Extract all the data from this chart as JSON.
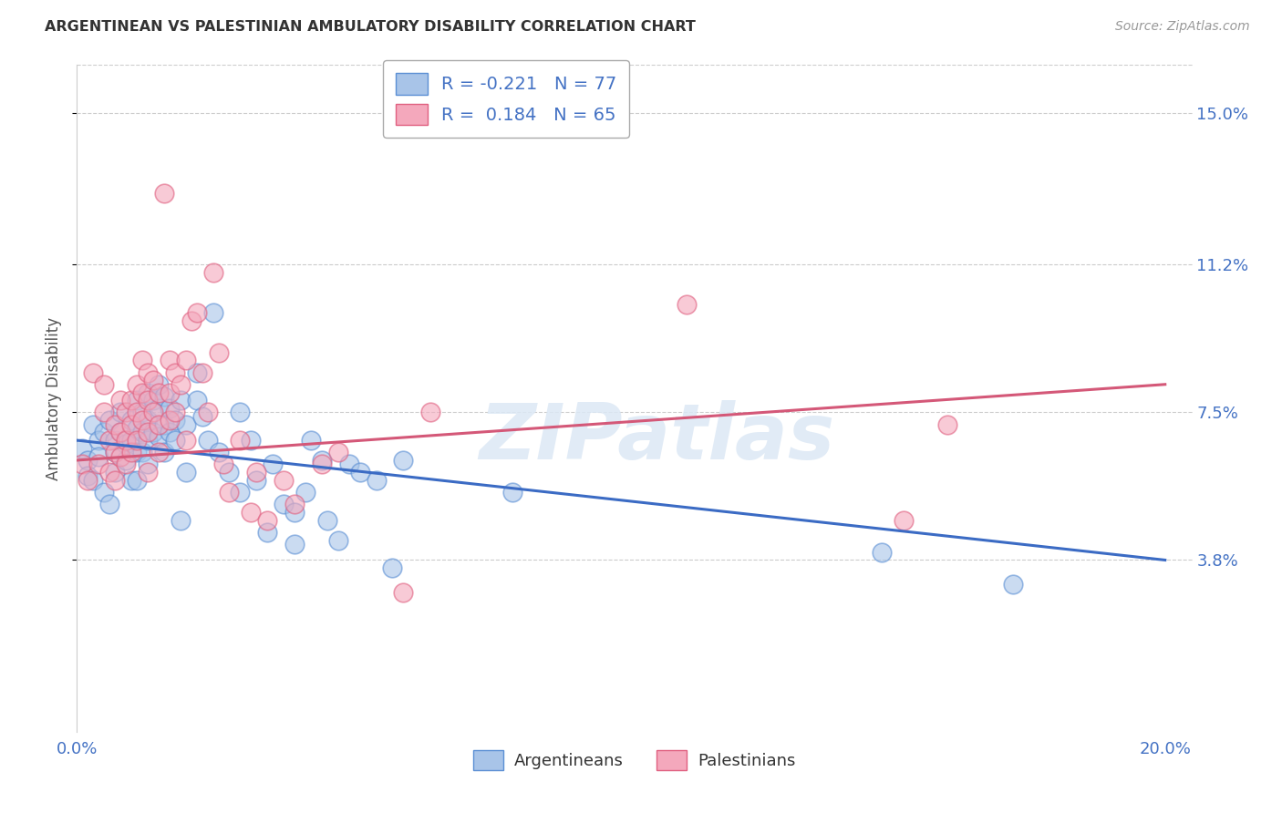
{
  "title": "ARGENTINEAN VS PALESTINIAN AMBULATORY DISABILITY CORRELATION CHART",
  "source": "Source: ZipAtlas.com",
  "ylabel": "Ambulatory Disability",
  "xlabel": "",
  "xlim": [
    0.0,
    0.205
  ],
  "ylim": [
    -0.005,
    0.162
  ],
  "yticks": [
    0.038,
    0.075,
    0.112,
    0.15
  ],
  "ytick_labels": [
    "3.8%",
    "7.5%",
    "11.2%",
    "15.0%"
  ],
  "xticks": [
    0.0,
    0.05,
    0.1,
    0.15,
    0.2
  ],
  "watermark": "ZIPatlas",
  "argentinean_color": "#a8c4e8",
  "palestinian_color": "#f4a8bc",
  "argentinean_edge_color": "#5b8fd4",
  "palestinian_edge_color": "#e06080",
  "argentinean_line_color": "#3b6bc4",
  "palestinian_line_color": "#d45878",
  "R_arg": -0.221,
  "N_arg": 77,
  "R_pal": 0.184,
  "N_pal": 65,
  "background_color": "#ffffff",
  "grid_color": "#cccccc",
  "title_color": "#333333",
  "axis_label_color": "#555555",
  "right_tick_color": "#4472c4",
  "argentinean_points": [
    [
      0.001,
      0.066
    ],
    [
      0.002,
      0.063
    ],
    [
      0.002,
      0.059
    ],
    [
      0.003,
      0.058
    ],
    [
      0.003,
      0.072
    ],
    [
      0.004,
      0.068
    ],
    [
      0.004,
      0.064
    ],
    [
      0.005,
      0.07
    ],
    [
      0.005,
      0.055
    ],
    [
      0.006,
      0.052
    ],
    [
      0.006,
      0.073
    ],
    [
      0.007,
      0.068
    ],
    [
      0.007,
      0.065
    ],
    [
      0.007,
      0.06
    ],
    [
      0.008,
      0.075
    ],
    [
      0.008,
      0.07
    ],
    [
      0.009,
      0.067
    ],
    [
      0.009,
      0.063
    ],
    [
      0.01,
      0.073
    ],
    [
      0.01,
      0.068
    ],
    [
      0.01,
      0.058
    ],
    [
      0.011,
      0.078
    ],
    [
      0.011,
      0.071
    ],
    [
      0.011,
      0.065
    ],
    [
      0.011,
      0.058
    ],
    [
      0.012,
      0.075
    ],
    [
      0.012,
      0.07
    ],
    [
      0.012,
      0.065
    ],
    [
      0.013,
      0.08
    ],
    [
      0.013,
      0.073
    ],
    [
      0.013,
      0.068
    ],
    [
      0.013,
      0.062
    ],
    [
      0.014,
      0.078
    ],
    [
      0.014,
      0.07
    ],
    [
      0.015,
      0.082
    ],
    [
      0.015,
      0.076
    ],
    [
      0.015,
      0.069
    ],
    [
      0.016,
      0.079
    ],
    [
      0.016,
      0.072
    ],
    [
      0.016,
      0.065
    ],
    [
      0.017,
      0.076
    ],
    [
      0.017,
      0.07
    ],
    [
      0.018,
      0.073
    ],
    [
      0.018,
      0.068
    ],
    [
      0.019,
      0.078
    ],
    [
      0.019,
      0.048
    ],
    [
      0.02,
      0.072
    ],
    [
      0.02,
      0.06
    ],
    [
      0.022,
      0.085
    ],
    [
      0.022,
      0.078
    ],
    [
      0.023,
      0.074
    ],
    [
      0.024,
      0.068
    ],
    [
      0.025,
      0.1
    ],
    [
      0.026,
      0.065
    ],
    [
      0.028,
      0.06
    ],
    [
      0.03,
      0.075
    ],
    [
      0.03,
      0.055
    ],
    [
      0.032,
      0.068
    ],
    [
      0.033,
      0.058
    ],
    [
      0.035,
      0.045
    ],
    [
      0.036,
      0.062
    ],
    [
      0.038,
      0.052
    ],
    [
      0.04,
      0.05
    ],
    [
      0.04,
      0.042
    ],
    [
      0.042,
      0.055
    ],
    [
      0.043,
      0.068
    ],
    [
      0.045,
      0.063
    ],
    [
      0.046,
      0.048
    ],
    [
      0.048,
      0.043
    ],
    [
      0.05,
      0.062
    ],
    [
      0.052,
      0.06
    ],
    [
      0.055,
      0.058
    ],
    [
      0.058,
      0.036
    ],
    [
      0.06,
      0.063
    ],
    [
      0.08,
      0.055
    ],
    [
      0.148,
      0.04
    ],
    [
      0.172,
      0.032
    ]
  ],
  "palestinian_points": [
    [
      0.001,
      0.062
    ],
    [
      0.002,
      0.058
    ],
    [
      0.003,
      0.085
    ],
    [
      0.004,
      0.062
    ],
    [
      0.005,
      0.082
    ],
    [
      0.005,
      0.075
    ],
    [
      0.006,
      0.068
    ],
    [
      0.006,
      0.06
    ],
    [
      0.007,
      0.072
    ],
    [
      0.007,
      0.065
    ],
    [
      0.007,
      0.058
    ],
    [
      0.008,
      0.078
    ],
    [
      0.008,
      0.07
    ],
    [
      0.008,
      0.064
    ],
    [
      0.009,
      0.075
    ],
    [
      0.009,
      0.068
    ],
    [
      0.009,
      0.062
    ],
    [
      0.01,
      0.078
    ],
    [
      0.01,
      0.072
    ],
    [
      0.01,
      0.065
    ],
    [
      0.011,
      0.082
    ],
    [
      0.011,
      0.075
    ],
    [
      0.011,
      0.068
    ],
    [
      0.012,
      0.088
    ],
    [
      0.012,
      0.08
    ],
    [
      0.012,
      0.073
    ],
    [
      0.013,
      0.085
    ],
    [
      0.013,
      0.078
    ],
    [
      0.013,
      0.07
    ],
    [
      0.013,
      0.06
    ],
    [
      0.014,
      0.083
    ],
    [
      0.014,
      0.075
    ],
    [
      0.015,
      0.08
    ],
    [
      0.015,
      0.072
    ],
    [
      0.015,
      0.065
    ],
    [
      0.016,
      0.13
    ],
    [
      0.017,
      0.088
    ],
    [
      0.017,
      0.08
    ],
    [
      0.017,
      0.073
    ],
    [
      0.018,
      0.085
    ],
    [
      0.018,
      0.075
    ],
    [
      0.019,
      0.082
    ],
    [
      0.02,
      0.088
    ],
    [
      0.02,
      0.068
    ],
    [
      0.021,
      0.098
    ],
    [
      0.022,
      0.1
    ],
    [
      0.023,
      0.085
    ],
    [
      0.024,
      0.075
    ],
    [
      0.025,
      0.11
    ],
    [
      0.026,
      0.09
    ],
    [
      0.027,
      0.062
    ],
    [
      0.028,
      0.055
    ],
    [
      0.03,
      0.068
    ],
    [
      0.032,
      0.05
    ],
    [
      0.033,
      0.06
    ],
    [
      0.035,
      0.048
    ],
    [
      0.038,
      0.058
    ],
    [
      0.04,
      0.052
    ],
    [
      0.045,
      0.062
    ],
    [
      0.048,
      0.065
    ],
    [
      0.06,
      0.03
    ],
    [
      0.065,
      0.075
    ],
    [
      0.112,
      0.102
    ],
    [
      0.152,
      0.048
    ],
    [
      0.16,
      0.072
    ]
  ],
  "arg_line": [
    [
      0.0,
      0.068
    ],
    [
      0.2,
      0.038
    ]
  ],
  "pal_line": [
    [
      0.0,
      0.063
    ],
    [
      0.2,
      0.082
    ]
  ]
}
